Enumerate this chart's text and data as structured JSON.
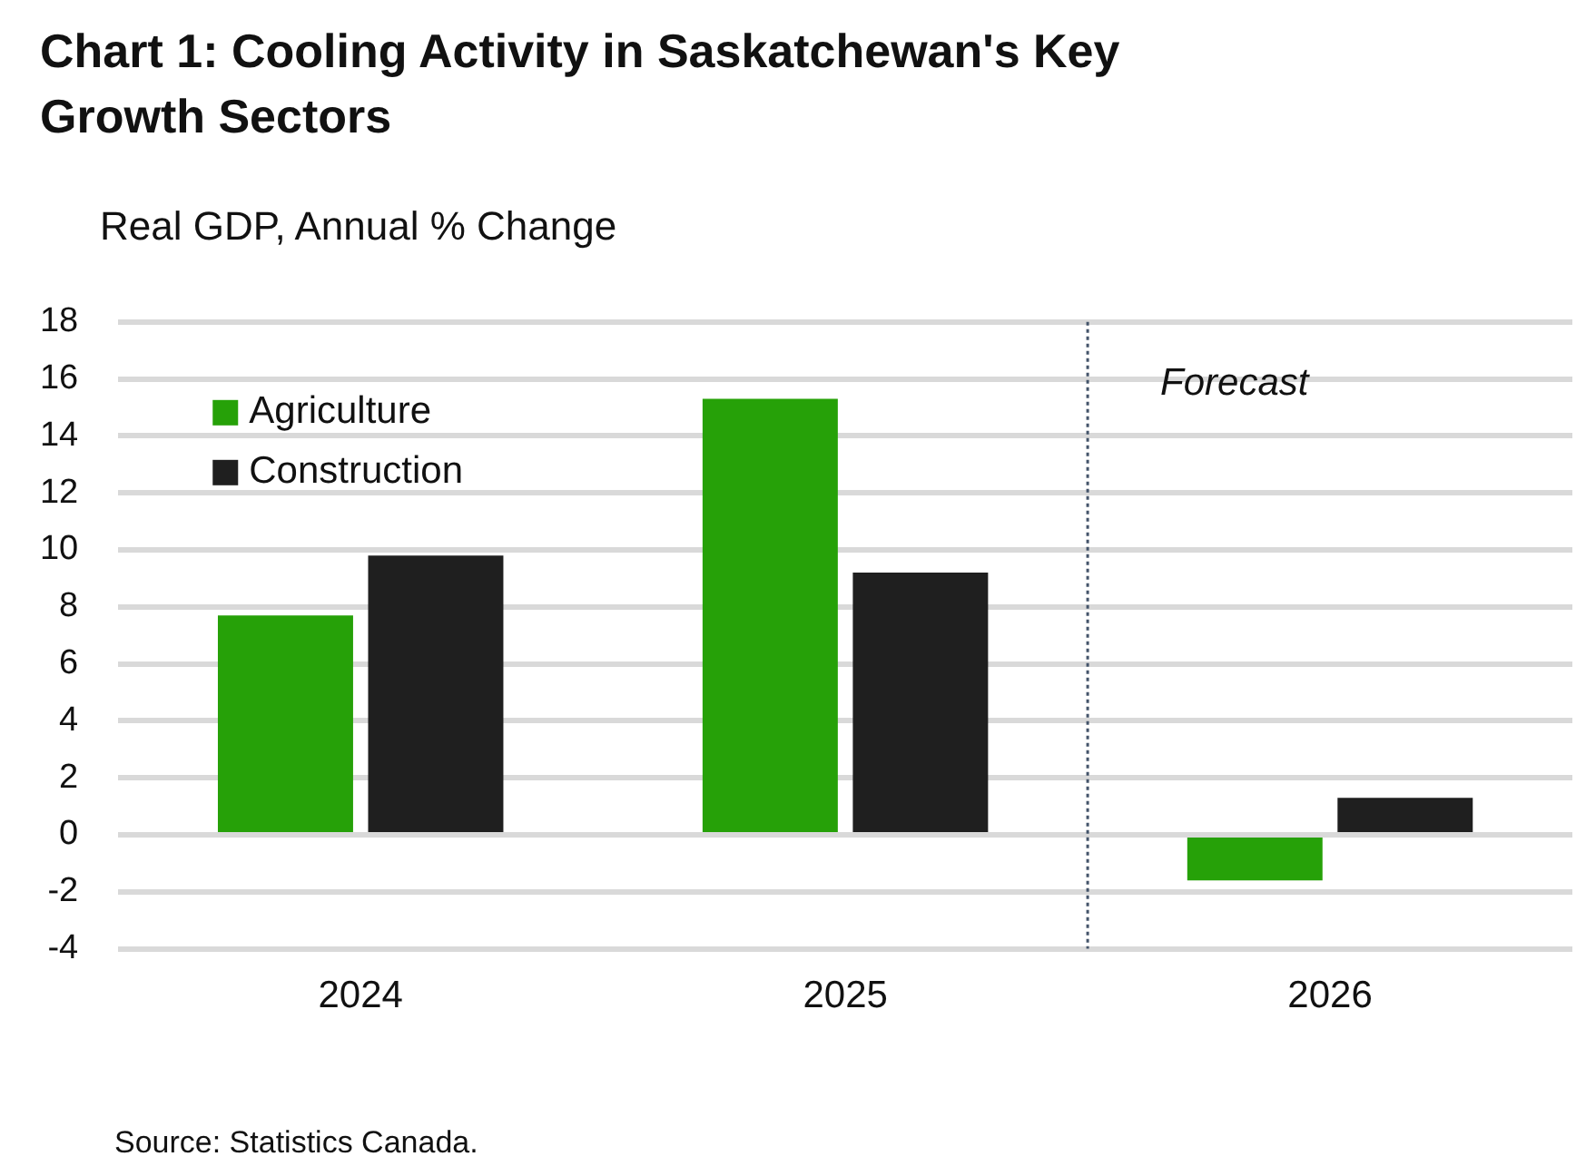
{
  "chart_data": {
    "type": "bar",
    "title": "Chart 1: Cooling Activity in Saskatchewan's Key Growth Sectors",
    "ylabel": "Real GDP, Annual % Change",
    "x": [
      2024,
      2025,
      2026
    ],
    "xlim": [
      2023.5,
      2026.5
    ],
    "xticks": [
      2024,
      2025,
      2026
    ],
    "series": [
      {
        "name": "Agriculture",
        "color": "#26a108",
        "values": [
          7.7,
          15.3,
          -1.6
        ]
      },
      {
        "name": "Construction",
        "color": "#1f1f1f",
        "values": [
          9.8,
          9.2,
          1.3
        ]
      }
    ],
    "ylim": [
      -4,
      18
    ],
    "yticks": [
      -4,
      -2,
      0,
      2,
      4,
      6,
      8,
      10,
      12,
      14,
      16,
      18
    ],
    "grid": "y",
    "legend": "top left",
    "ref_lines": [
      {
        "axis": "x",
        "value": 2025.5,
        "label": "Forecast",
        "line_style": "dotted",
        "color": "#44546a"
      }
    ],
    "annotations": [
      "Source: Statistics Canada."
    ]
  }
}
